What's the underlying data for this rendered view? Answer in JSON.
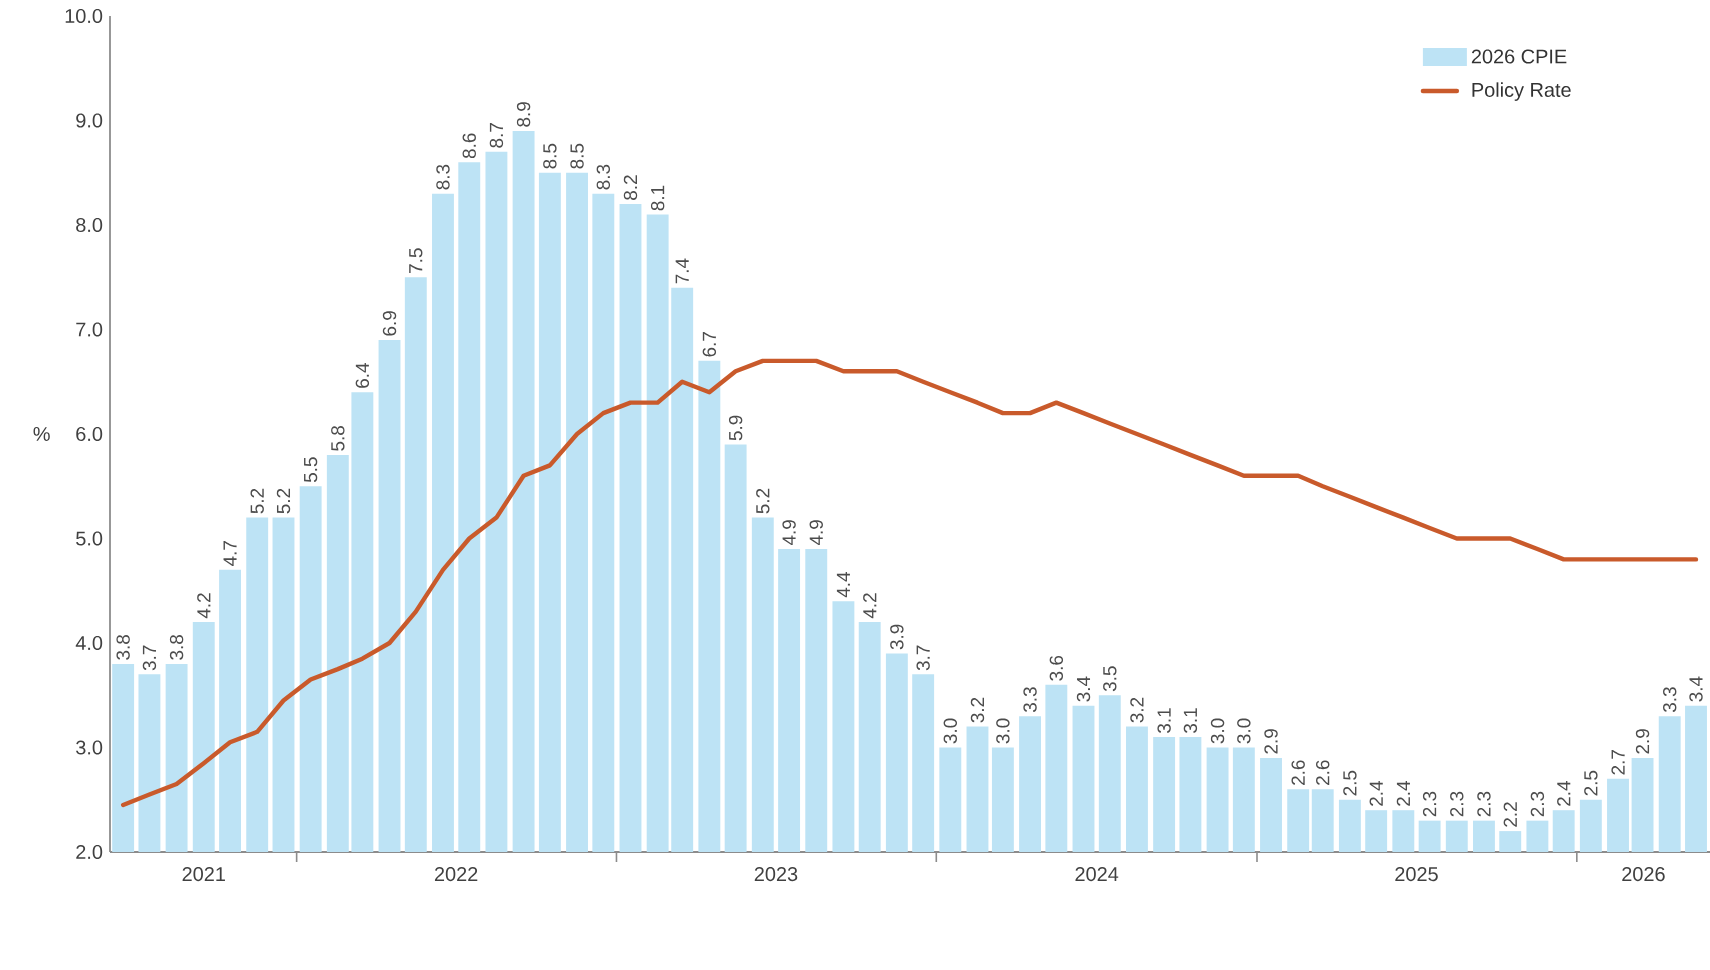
{
  "chart_data": {
    "type": "bar",
    "ylabel": "%",
    "x": [
      "2021-06",
      "2021-07",
      "2021-08",
      "2021-09",
      "2021-10",
      "2021-11",
      "2021-12",
      "2022-01",
      "2022-02",
      "2022-03",
      "2022-04",
      "2022-05",
      "2022-06",
      "2022-07",
      "2022-08",
      "2022-09",
      "2022-10",
      "2022-11",
      "2022-12",
      "2023-01",
      "2023-02",
      "2023-03",
      "2023-04",
      "2023-05",
      "2023-06",
      "2023-07",
      "2023-08",
      "2023-09",
      "2023-10",
      "2023-11",
      "2023-12",
      "2024-01",
      "2024-02",
      "2024-03",
      "2024-04",
      "2024-05",
      "2024-06",
      "2024-07",
      "2024-08",
      "2024-09",
      "2024-10",
      "2024-11",
      "2024-12",
      "2025-01",
      "2025-02",
      "2025-03",
      "2025-04",
      "2025-05",
      "2025-06",
      "2025-07",
      "2025-08",
      "2025-09",
      "2025-10",
      "2025-11",
      "2025-12",
      "2026-01",
      "2026-02",
      "2026-03",
      "2026-04",
      "2026-05"
    ],
    "xlim": [
      "2021-05-17",
      "2026-05-17"
    ],
    "xticks": [
      {
        "value": "2021-09-01",
        "label": "2021"
      },
      {
        "value": "2021-12-16",
        "label": null
      },
      {
        "value": "2022-06-16",
        "label": "2022"
      },
      {
        "value": "2022-12-16",
        "label": null
      },
      {
        "value": "2023-06-16",
        "label": "2023"
      },
      {
        "value": "2023-12-16",
        "label": null
      },
      {
        "value": "2024-06-16",
        "label": "2024"
      },
      {
        "value": "2024-12-16",
        "label": null
      },
      {
        "value": "2025-06-16",
        "label": "2025"
      },
      {
        "value": "2025-12-16",
        "label": null
      },
      {
        "value": "2026-03-02",
        "label": "2026"
      }
    ],
    "ylim": [
      2,
      10
    ],
    "yticks": [
      {
        "value": 2,
        "label": "2.0"
      },
      {
        "value": 3,
        "label": "3.0"
      },
      {
        "value": 4,
        "label": "4.0"
      },
      {
        "value": 5,
        "label": "5.0"
      },
      {
        "value": 6,
        "label": "6.0"
      },
      {
        "value": 7,
        "label": "7.0"
      },
      {
        "value": 8,
        "label": "8.0"
      },
      {
        "value": 9,
        "label": "9.0"
      },
      {
        "value": 10,
        "label": "10.0"
      }
    ],
    "legend": "top right",
    "series": [
      {
        "name": "2026 CPIE",
        "color": "#bde3f5",
        "values": [
          3.8,
          3.7,
          3.8,
          4.2,
          4.7,
          5.2,
          5.2,
          5.5,
          5.8,
          6.4,
          6.9,
          7.5,
          8.3,
          8.6,
          8.7,
          8.9,
          8.5,
          8.5,
          8.3,
          8.2,
          8.1,
          7.4,
          6.7,
          5.9,
          5.2,
          4.9,
          4.9,
          4.4,
          4.2,
          3.9,
          3.7,
          3.0,
          3.2,
          3.0,
          3.3,
          3.6,
          3.4,
          3.5,
          3.2,
          3.1,
          3.1,
          3.0,
          3.0,
          2.9,
          2.6,
          2.6,
          2.5,
          2.4,
          2.4,
          2.3,
          2.3,
          2.3,
          2.2,
          2.3,
          2.4,
          2.5,
          2.7,
          2.9,
          3.3,
          3.4
        ],
        "value_labels": [
          "3.8",
          "3.7",
          "3.8",
          "4.2",
          "4.7",
          "5.2",
          "5.2",
          "5.5",
          "5.8",
          "6.4",
          "6.9",
          "7.5",
          "8.3",
          "8.6",
          "8.7",
          "8.9",
          "8.5",
          "8.5",
          "8.3",
          "8.2",
          "8.1",
          "7.4",
          "6.7",
          "5.9",
          "5.2",
          "4.9",
          "4.9",
          "4.4",
          "4.2",
          "3.9",
          "3.7",
          "3.0",
          "3.2",
          "3.0",
          "3.3",
          "3.6",
          "3.4",
          "3.5",
          "3.2",
          "3.1",
          "3.1",
          "3.0",
          "3.0",
          "2.9",
          "2.6",
          "2.6",
          "2.5",
          "2.4",
          "2.4",
          "2.3",
          "2.3",
          "2.3",
          "2.2",
          "2.3",
          "2.4",
          "2.5",
          "2.7",
          "2.9",
          "3.3",
          "3.4"
        ]
      },
      {
        "name": "Policy Rate",
        "type": "line",
        "color": "#c95a2b",
        "values": [
          2.45,
          2.55,
          2.65,
          2.85,
          3.05,
          3.15,
          3.45,
          3.65,
          3.75,
          3.85,
          4.0,
          4.3,
          4.7,
          5.0,
          5.2,
          5.6,
          5.7,
          6.0,
          6.2,
          6.3,
          6.3,
          6.5,
          6.4,
          6.6,
          6.7,
          6.7,
          6.7,
          6.6,
          6.6,
          6.6,
          6.5,
          6.4,
          6.3,
          6.2,
          6.2,
          6.3,
          6.2,
          6.1,
          6.0,
          5.9,
          5.8,
          5.7,
          5.6,
          5.6,
          5.6,
          5.5,
          5.4,
          5.3,
          5.2,
          5.1,
          5.0,
          5.0,
          5.0,
          4.9,
          4.8,
          4.8,
          4.8,
          4.8,
          4.8,
          4.8
        ]
      }
    ]
  }
}
